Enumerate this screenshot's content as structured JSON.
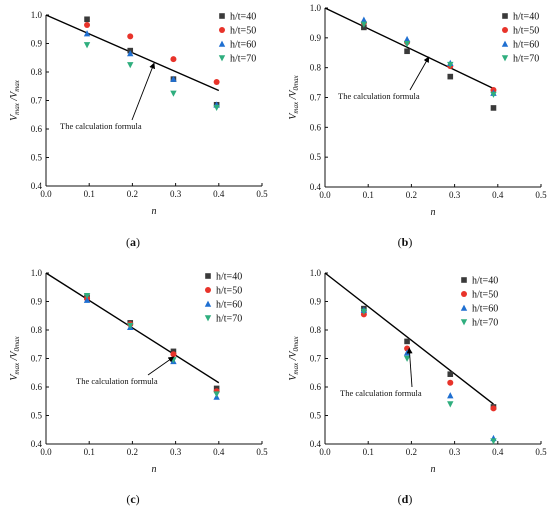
{
  "chart_data": [
    {
      "type": "scatter",
      "panel_label": "a",
      "xlabel": "n",
      "ylabel_main": "V",
      "ylabel_sub1": "max",
      "ylabel_mid": " /V",
      "ylabel_sub2": "max",
      "xlim": [
        0,
        0.5
      ],
      "ylim": [
        0.4,
        1.0
      ],
      "xticks": [
        "0.0",
        "0.1",
        "0.2",
        "0.3",
        "0.4",
        "0.5"
      ],
      "yticks": [
        "0.4",
        "0.5",
        "0.6",
        "0.7",
        "0.8",
        "0.9",
        "1.0"
      ],
      "legend_position": "top-right",
      "annotation": "The calculation formula",
      "formula_line": {
        "x": [
          0.0,
          0.4
        ],
        "y": [
          1.0,
          0.735
        ]
      },
      "annotation_target": {
        "x": 0.25,
        "y": 0.83
      },
      "series": [
        {
          "name": "h/t=40",
          "marker": "square",
          "x": [
            0.095,
            0.195,
            0.295,
            0.395
          ],
          "y": [
            0.985,
            0.875,
            0.775,
            0.685
          ]
        },
        {
          "name": "h/t=50",
          "marker": "circle",
          "x": [
            0.095,
            0.195,
            0.295,
            0.395
          ],
          "y": [
            0.965,
            0.925,
            0.845,
            0.765
          ]
        },
        {
          "name": "h/t=60",
          "marker": "triangle-up",
          "x": [
            0.095,
            0.195,
            0.295,
            0.395
          ],
          "y": [
            0.935,
            0.865,
            0.775,
            0.685
          ]
        },
        {
          "name": "h/t=70",
          "marker": "triangle-down",
          "x": [
            0.095,
            0.195,
            0.295,
            0.395
          ],
          "y": [
            0.895,
            0.825,
            0.725,
            0.675
          ]
        }
      ]
    },
    {
      "type": "scatter",
      "panel_label": "b",
      "xlabel": "n",
      "ylabel_main": "V",
      "ylabel_sub1": "max",
      "ylabel_mid": " /V",
      "ylabel_sub2": "0max",
      "xlim": [
        0,
        0.5
      ],
      "ylim": [
        0.4,
        1.0
      ],
      "xticks": [
        "0.0",
        "0.1",
        "0.2",
        "0.3",
        "0.4",
        "0.5"
      ],
      "yticks": [
        "0.4",
        "0.5",
        "0.6",
        "0.7",
        "0.8",
        "0.9",
        "1.0"
      ],
      "legend_position": "top-right",
      "annotation": "The calculation formula",
      "formula_line": {
        "x": [
          0.0,
          0.39
        ],
        "y": [
          1.0,
          0.73
        ]
      },
      "annotation_target": {
        "x": 0.24,
        "y": 0.835
      },
      "series": [
        {
          "name": "h/t=40",
          "marker": "square",
          "x": [
            0.09,
            0.19,
            0.29,
            0.39
          ],
          "y": [
            0.935,
            0.855,
            0.77,
            0.665
          ]
        },
        {
          "name": "h/t=50",
          "marker": "circle",
          "x": [
            0.09,
            0.19,
            0.29,
            0.39
          ],
          "y": [
            0.95,
            0.885,
            0.805,
            0.725
          ]
        },
        {
          "name": "h/t=60",
          "marker": "triangle-up",
          "x": [
            0.09,
            0.19,
            0.29,
            0.39
          ],
          "y": [
            0.96,
            0.895,
            0.815,
            0.715
          ]
        },
        {
          "name": "h/t=70",
          "marker": "triangle-down",
          "x": [
            0.09,
            0.19,
            0.29,
            0.39
          ],
          "y": [
            0.945,
            0.88,
            0.81,
            0.71
          ]
        }
      ]
    },
    {
      "type": "scatter",
      "panel_label": "c",
      "xlabel": "n",
      "ylabel_main": "V",
      "ylabel_sub1": "max",
      "ylabel_mid": " /V",
      "ylabel_sub2": "0max",
      "xlim": [
        0,
        0.5
      ],
      "ylim": [
        0.4,
        1.0
      ],
      "xticks": [
        "0.0",
        "0.1",
        "0.2",
        "0.3",
        "0.4",
        "0.5"
      ],
      "yticks": [
        "0.4",
        "0.5",
        "0.6",
        "0.7",
        "0.8",
        "0.9",
        "1.0"
      ],
      "legend_position": "top-right",
      "annotation": "The calculation formula",
      "formula_line": {
        "x": [
          0.0,
          0.4
        ],
        "y": [
          1.0,
          0.615
        ]
      },
      "annotation_target": {
        "x": 0.295,
        "y": 0.705
      },
      "series": [
        {
          "name": "h/t=40",
          "marker": "square",
          "x": [
            0.095,
            0.195,
            0.295,
            0.395
          ],
          "y": [
            0.915,
            0.825,
            0.725,
            0.595
          ]
        },
        {
          "name": "h/t=50",
          "marker": "circle",
          "x": [
            0.095,
            0.195,
            0.295,
            0.395
          ],
          "y": [
            0.91,
            0.82,
            0.715,
            0.585
          ]
        },
        {
          "name": "h/t=60",
          "marker": "triangle-up",
          "x": [
            0.095,
            0.195,
            0.295,
            0.395
          ],
          "y": [
            0.905,
            0.81,
            0.69,
            0.565
          ]
        },
        {
          "name": "h/t=70",
          "marker": "triangle-down",
          "x": [
            0.095,
            0.195,
            0.295,
            0.395
          ],
          "y": [
            0.92,
            0.815,
            0.695,
            0.575
          ]
        }
      ]
    },
    {
      "type": "scatter",
      "panel_label": "d",
      "xlabel": "n",
      "ylabel_main": "V",
      "ylabel_sub1": "max",
      "ylabel_mid": " /V",
      "ylabel_sub2": "0max",
      "xlim": [
        0,
        0.5
      ],
      "ylim": [
        0.4,
        1.0
      ],
      "xticks": [
        "0.0",
        "0.1",
        "0.2",
        "0.3",
        "0.4",
        "0.5"
      ],
      "yticks": [
        "0.4",
        "0.5",
        "0.6",
        "0.7",
        "0.8",
        "0.9",
        "1.0"
      ],
      "legend_position": "top-right",
      "annotation": "The calculation formula",
      "formula_line": {
        "x": [
          0.0,
          0.39
        ],
        "y": [
          1.0,
          0.54
        ]
      },
      "annotation_target": {
        "x": 0.195,
        "y": 0.735
      },
      "series": [
        {
          "name": "h/t=40",
          "marker": "square",
          "x": [
            0.09,
            0.19,
            0.29,
            0.39
          ],
          "y": [
            0.875,
            0.76,
            0.645,
            0.53
          ]
        },
        {
          "name": "h/t=50",
          "marker": "circle",
          "x": [
            0.09,
            0.19,
            0.29,
            0.39
          ],
          "y": [
            0.855,
            0.735,
            0.615,
            0.525
          ]
        },
        {
          "name": "h/t=60",
          "marker": "triangle-up",
          "x": [
            0.09,
            0.19,
            0.29,
            0.39
          ],
          "y": [
            0.87,
            0.72,
            0.57,
            0.42
          ]
        },
        {
          "name": "h/t=70",
          "marker": "triangle-down",
          "x": [
            0.09,
            0.19,
            0.29,
            0.39
          ],
          "y": [
            0.865,
            0.7,
            0.54,
            0.41
          ]
        }
      ]
    }
  ],
  "colors": {
    "h/t=40": "#3a3a3a",
    "h/t=50": "#e8332a",
    "h/t=60": "#1f6fd1",
    "h/t=70": "#2fae7e",
    "axis": "#111111",
    "line": "#000000"
  }
}
